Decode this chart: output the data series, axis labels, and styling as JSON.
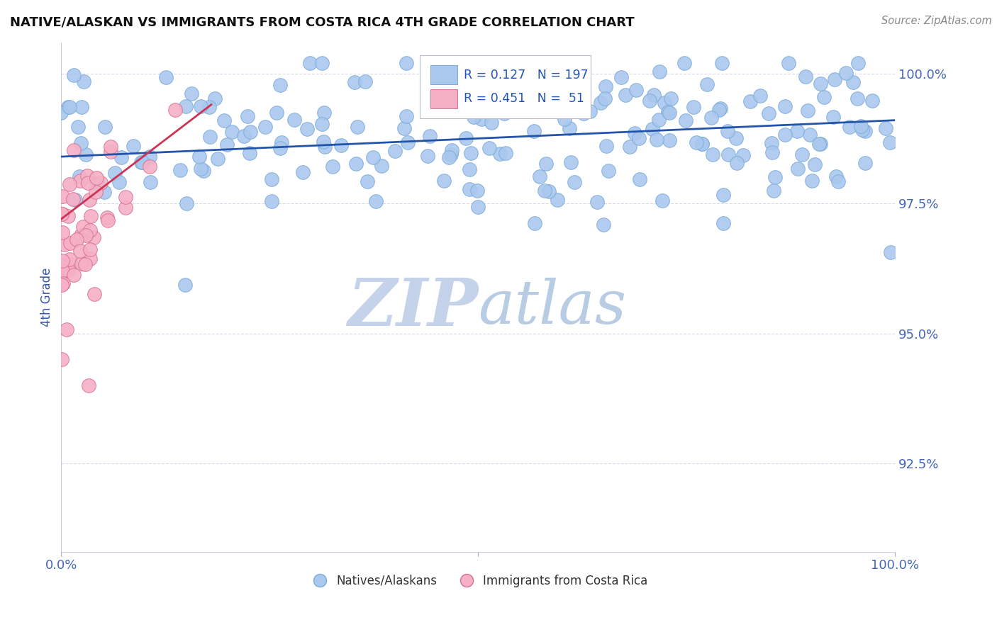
{
  "title": "NATIVE/ALASKAN VS IMMIGRANTS FROM COSTA RICA 4TH GRADE CORRELATION CHART",
  "source": "Source: ZipAtlas.com",
  "ylabel": "4th Grade",
  "xlim": [
    0.0,
    1.0
  ],
  "ylim": [
    0.908,
    1.006
  ],
  "yticks": [
    0.925,
    0.95,
    0.975,
    1.0
  ],
  "ytick_labels": [
    "92.5%",
    "95.0%",
    "97.5%",
    "100.0%"
  ],
  "blue_R": 0.127,
  "blue_N": 197,
  "pink_R": 0.451,
  "pink_N": 51,
  "blue_color": "#aac8ee",
  "blue_edge": "#7aaad8",
  "pink_color": "#f5b0c5",
  "pink_edge": "#d87090",
  "blue_line_color": "#2255aa",
  "pink_line_color": "#cc3355",
  "legend_color": "#2255bb",
  "title_color": "#111111",
  "axis_label_color": "#3355aa",
  "tick_color": "#4466bb",
  "grid_color": "#d8d8e8",
  "source_color": "#888888",
  "watermark_Z_color": "#c8d4ee",
  "watermark_IP_color": "#c8d4ee",
  "watermark_atlas_color": "#b8cce4",
  "background_color": "#ffffff"
}
